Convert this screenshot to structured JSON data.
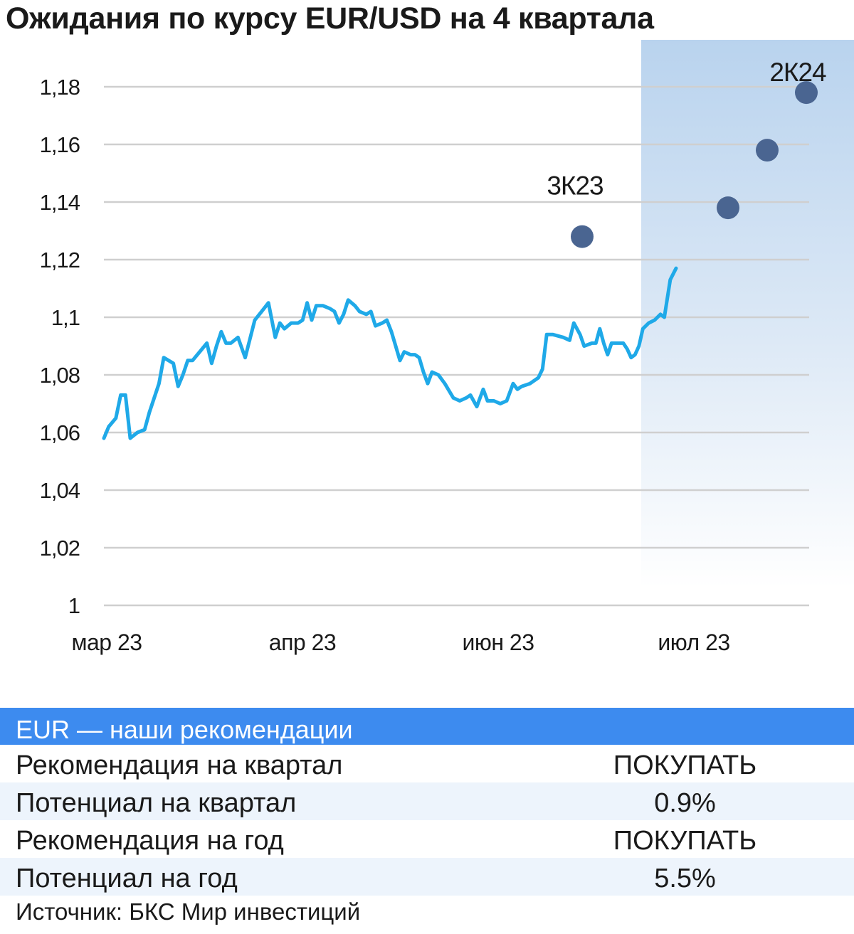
{
  "title": "Ожидания по курсу EUR/USD на 4 квартала",
  "colors": {
    "line": "#1fa9e8",
    "forecast_dot": "#4a6591",
    "forecast_band": "#bcd5ef",
    "gridline": "#cfcfcf",
    "table_header": "#3d8bef",
    "table_row_alt": "#edf4fc"
  },
  "chart_data": {
    "type": "line",
    "title": "Ожидания по курсу EUR/USD на 4 квартала",
    "ylim": [
      1.0,
      1.18
    ],
    "yticks": [
      "1",
      "1,02",
      "1,04",
      "1,06",
      "1,08",
      "1,1",
      "1,12",
      "1,14",
      "1,16",
      "1,18"
    ],
    "xtick_labels": [
      "мар 23",
      "апр 23",
      "июн 23",
      "июл 23"
    ],
    "xlim": [
      "2023-03-01",
      "2024-06-30"
    ],
    "grid": "horizontal",
    "series": [
      {
        "kind": "actual",
        "points": [
          [
            "2023-03-01",
            1.058
          ],
          [
            "2023-03-03",
            1.062
          ],
          [
            "2023-03-06",
            1.065
          ],
          [
            "2023-03-08",
            1.073
          ],
          [
            "2023-03-10",
            1.073
          ],
          [
            "2023-03-12",
            1.058
          ],
          [
            "2023-03-15",
            1.06
          ],
          [
            "2023-03-18",
            1.061
          ],
          [
            "2023-03-20",
            1.067
          ],
          [
            "2023-03-24",
            1.077
          ],
          [
            "2023-03-26",
            1.086
          ],
          [
            "2023-03-30",
            1.084
          ],
          [
            "2023-04-01",
            1.076
          ],
          [
            "2023-04-03",
            1.08
          ],
          [
            "2023-04-05",
            1.085
          ],
          [
            "2023-04-07",
            1.085
          ],
          [
            "2023-04-10",
            1.088
          ],
          [
            "2023-04-13",
            1.091
          ],
          [
            "2023-04-15",
            1.084
          ],
          [
            "2023-04-17",
            1.09
          ],
          [
            "2023-04-19",
            1.095
          ],
          [
            "2023-04-21",
            1.091
          ],
          [
            "2023-04-23",
            1.091
          ],
          [
            "2023-04-26",
            1.093
          ],
          [
            "2023-04-29",
            1.086
          ],
          [
            "2023-05-03",
            1.099
          ],
          [
            "2023-05-06",
            1.102
          ],
          [
            "2023-05-09",
            1.105
          ],
          [
            "2023-05-12",
            1.093
          ],
          [
            "2023-05-14",
            1.098
          ],
          [
            "2023-05-16",
            1.096
          ],
          [
            "2023-05-19",
            1.098
          ],
          [
            "2023-05-22",
            1.098
          ],
          [
            "2023-05-24",
            1.099
          ],
          [
            "2023-05-26",
            1.105
          ],
          [
            "2023-05-28",
            1.099
          ],
          [
            "2023-05-30",
            1.104
          ],
          [
            "2023-06-02",
            1.104
          ],
          [
            "2023-06-05",
            1.103
          ],
          [
            "2023-06-07",
            1.102
          ],
          [
            "2023-06-09",
            1.098
          ],
          [
            "2023-06-11",
            1.101
          ],
          [
            "2023-06-13",
            1.106
          ],
          [
            "2023-06-16",
            1.104
          ],
          [
            "2023-06-18",
            1.102
          ],
          [
            "2023-06-21",
            1.101
          ],
          [
            "2023-06-23",
            1.102
          ],
          [
            "2023-06-25",
            1.097
          ],
          [
            "2023-06-28",
            1.098
          ],
          [
            "2023-06-30",
            1.099
          ],
          [
            "2023-07-02",
            1.095
          ],
          [
            "2023-07-04",
            1.09
          ],
          [
            "2023-07-06",
            1.085
          ],
          [
            "2023-07-08",
            1.088
          ],
          [
            "2023-07-11",
            1.087
          ],
          [
            "2023-07-13",
            1.087
          ],
          [
            "2023-07-15",
            1.086
          ],
          [
            "2023-07-17",
            1.081
          ],
          [
            "2023-07-19",
            1.077
          ],
          [
            "2023-07-21",
            1.081
          ],
          [
            "2023-07-24",
            1.08
          ],
          [
            "2023-07-27",
            1.077
          ],
          [
            "2023-07-31",
            1.072
          ],
          [
            "2023-08-03",
            1.071
          ],
          [
            "2023-08-06",
            1.072
          ],
          [
            "2023-08-08",
            1.073
          ],
          [
            "2023-08-11",
            1.069
          ],
          [
            "2023-08-14",
            1.075
          ],
          [
            "2023-08-16",
            1.071
          ],
          [
            "2023-08-19",
            1.071
          ],
          [
            "2023-08-22",
            1.07
          ],
          [
            "2023-08-25",
            1.071
          ],
          [
            "2023-08-28",
            1.077
          ],
          [
            "2023-08-30",
            1.075
          ],
          [
            "2023-09-01",
            1.076
          ],
          [
            "2023-09-05",
            1.077
          ],
          [
            "2023-09-09",
            1.079
          ],
          [
            "2023-09-11",
            1.082
          ],
          [
            "2023-09-13",
            1.094
          ],
          [
            "2023-09-16",
            1.094
          ],
          [
            "2023-09-21",
            1.093
          ],
          [
            "2023-09-24",
            1.092
          ],
          [
            "2023-09-26",
            1.098
          ],
          [
            "2023-09-29",
            1.094
          ],
          [
            "2023-10-01",
            1.09
          ],
          [
            "2023-10-05",
            1.091
          ],
          [
            "2023-10-07",
            1.091
          ],
          [
            "2023-10-09",
            1.096
          ],
          [
            "2023-10-11",
            1.091
          ],
          [
            "2023-10-13",
            1.087
          ],
          [
            "2023-10-15",
            1.091
          ],
          [
            "2023-10-19",
            1.091
          ],
          [
            "2023-10-21",
            1.091
          ],
          [
            "2023-10-23",
            1.089
          ],
          [
            "2023-10-25",
            1.086
          ],
          [
            "2023-10-27",
            1.087
          ],
          [
            "2023-10-29",
            1.09
          ],
          [
            "2023-10-31",
            1.096
          ],
          [
            "2023-11-03",
            1.098
          ],
          [
            "2023-11-06",
            1.099
          ],
          [
            "2023-11-09",
            1.101
          ],
          [
            "2023-11-11",
            1.1
          ],
          [
            "2023-11-14",
            1.113
          ],
          [
            "2023-11-17",
            1.117
          ]
        ]
      },
      {
        "kind": "forecast",
        "points": [
          [
            "2023-09-30",
            1.128,
            "3К23"
          ],
          [
            "2023-12-31",
            1.138,
            ""
          ],
          [
            "2024-03-31",
            1.158,
            ""
          ],
          [
            "2024-06-30",
            1.178,
            "2К24"
          ]
        ]
      }
    ]
  },
  "table": {
    "header": "EUR — наши рекомендации",
    "rows": [
      {
        "label": "Рекомендация на квартал",
        "value": "ПОКУПАТЬ"
      },
      {
        "label": "Потенциал на квартал",
        "value": "0.9%"
      },
      {
        "label": "Рекомендация на год",
        "value": "ПОКУПАТЬ"
      },
      {
        "label": "Потенциал на год",
        "value": "5.5%"
      }
    ]
  },
  "source": "Источник: БКС Мир инвестиций"
}
